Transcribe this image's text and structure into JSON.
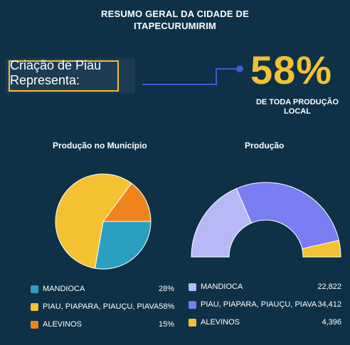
{
  "header": {
    "title_line1": "RESUMO GERAL DA CIDADE DE",
    "title_line2": "ITAPECURUMIRIM"
  },
  "callout": {
    "line1": "Criação de Piau",
    "line2": "Representa:"
  },
  "highlight": {
    "value": "58%",
    "sub_line1": "DE TODA PRODUÇÃO",
    "sub_line2": "LOCAL"
  },
  "colors": {
    "accent": "#f3c131",
    "background": "#0e3147",
    "teal": "#2a9fc0",
    "orange": "#f0841c",
    "lavender": "#b7b9f6",
    "periwinkle": "#7a7cf1",
    "yellow": "#f3c131"
  },
  "chart_data": [
    {
      "type": "pie",
      "title": "Produção no Município",
      "categories": [
        "MANDIOCA",
        "PIAU, PIAPARA, PIAUÇU, PIAVA",
        "ALEVINOS"
      ],
      "values": [
        28,
        58,
        15
      ],
      "value_labels": [
        "28%",
        "58%",
        "15%"
      ],
      "colors": [
        "#2a9fc0",
        "#f3c131",
        "#f0841c"
      ],
      "legend": "bottom"
    },
    {
      "type": "pie",
      "subtype": "semi-donut",
      "title": "Produção",
      "categories": [
        "MANDIOCA",
        "PIAU, PIAPARA, PIAUÇU, PIAVA",
        "ALEVINOS"
      ],
      "values": [
        22822,
        34412,
        4396
      ],
      "value_labels": [
        "22,822",
        "34,412",
        "4,396"
      ],
      "colors": [
        "#b7b9f6",
        "#7a7cf1",
        "#f3c131"
      ],
      "legend": "bottom"
    }
  ]
}
